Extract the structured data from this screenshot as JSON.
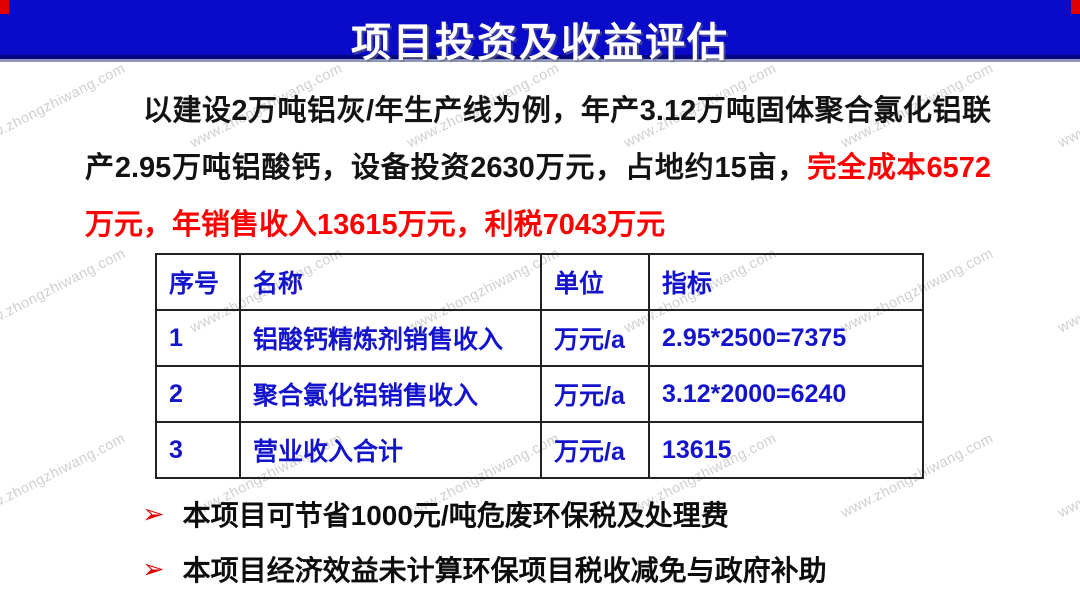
{
  "banner": {
    "title": "项目投资及收益评估",
    "bg_color": "#0a0ac9",
    "corner_color": "#e10000",
    "title_color": "#ffffff"
  },
  "watermark": {
    "text": "www.zhongzhiwang.com"
  },
  "paragraph": {
    "black_text": "以建设2万吨铝灰/年生产线为例，年产3.12万吨固体聚合氯化铝联产2.95万吨铝酸钙，设备投资2630万元，占地约15亩，",
    "red_text": "完全成本6572万元，年销售收入13615万元，利税7043万元",
    "red_color": "#fe0000"
  },
  "table": {
    "text_color": "#1414cc",
    "headers": [
      "序号",
      "名称",
      "单位",
      "指标"
    ],
    "rows": [
      [
        "1",
        "铝酸钙精炼剂销售收入",
        "万元/a",
        "2.95*2500=7375"
      ],
      [
        "2",
        "聚合氯化铝销售收入",
        "万元/a",
        "3.12*2000=6240"
      ],
      [
        "3",
        "营业收入合计",
        "万元/a",
        "13615"
      ]
    ]
  },
  "bullets": {
    "marker": "➢",
    "items": [
      "本项目可节省1000元/吨危废环保税及处理费",
      "本项目经济效益未计算环保项目税收减免与政府补助"
    ]
  }
}
